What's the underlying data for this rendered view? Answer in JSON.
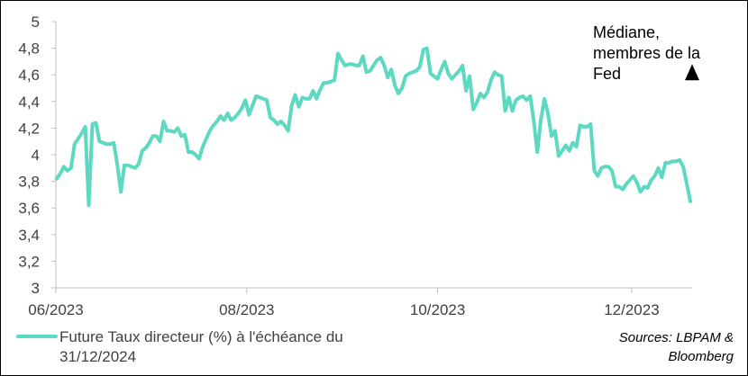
{
  "chart_data": {
    "type": "line",
    "title": "",
    "xlabel": "",
    "ylabel": "",
    "ylim": [
      3,
      5
    ],
    "y_ticks": [
      "5",
      "4,8",
      "4,6",
      "4,4",
      "4,2",
      "4",
      "3,8",
      "3,6",
      "3,4",
      "3,2",
      "3"
    ],
    "x_ticks": [
      "06/2023",
      "08/2023",
      "10/2023",
      "12/2023"
    ],
    "grid": false,
    "legend_position": "bottom-left",
    "series": [
      {
        "name": "Future Taux directeur (%) à l'échéance du 31/12/2024",
        "color": "#5DD9C1",
        "values": [
          3.82,
          3.86,
          3.91,
          3.88,
          3.9,
          4.08,
          4.12,
          4.16,
          4.21,
          3.62,
          4.23,
          4.24,
          4.1,
          4.09,
          4.08,
          4.08,
          4.09,
          3.93,
          3.72,
          3.92,
          3.92,
          3.91,
          3.9,
          3.93,
          4.03,
          4.05,
          4.09,
          4.14,
          4.14,
          4.1,
          4.25,
          4.18,
          4.18,
          4.17,
          4.2,
          4.14,
          4.15,
          4.02,
          4.02,
          4.0,
          3.97,
          4.06,
          4.12,
          4.18,
          4.22,
          4.25,
          4.29,
          4.26,
          4.31,
          4.26,
          4.28,
          4.31,
          4.35,
          4.41,
          4.3,
          4.37,
          4.44,
          4.43,
          4.42,
          4.41,
          4.28,
          4.26,
          4.23,
          4.25,
          4.22,
          4.18,
          4.37,
          4.45,
          4.36,
          4.43,
          4.42,
          4.42,
          4.48,
          4.42,
          4.49,
          4.54,
          4.54,
          4.55,
          4.56,
          4.76,
          4.71,
          4.67,
          4.68,
          4.68,
          4.67,
          4.67,
          4.74,
          4.62,
          4.63,
          4.67,
          4.71,
          4.73,
          4.67,
          4.58,
          4.64,
          4.52,
          4.46,
          4.5,
          4.59,
          4.61,
          4.62,
          4.63,
          4.66,
          4.79,
          4.8,
          4.61,
          4.59,
          4.57,
          4.64,
          4.7,
          4.61,
          4.57,
          4.6,
          4.63,
          4.67,
          4.48,
          4.59,
          4.34,
          4.39,
          4.46,
          4.43,
          4.47,
          4.56,
          4.62,
          4.6,
          4.59,
          4.33,
          4.43,
          4.33,
          4.41,
          4.43,
          4.44,
          4.41,
          4.44,
          4.26,
          4.02,
          4.26,
          4.42,
          4.31,
          4.14,
          4.18,
          3.99,
          4.03,
          4.07,
          4.03,
          4.09,
          4.06,
          4.22,
          4.21,
          4.21,
          4.23,
          3.88,
          3.84,
          3.9,
          3.91,
          3.91,
          3.88,
          3.76,
          3.76,
          3.74,
          3.78,
          3.81,
          3.84,
          3.79,
          3.72,
          3.76,
          3.75,
          3.81,
          3.84,
          3.9,
          3.83,
          3.94,
          3.94,
          3.95,
          3.95,
          3.96,
          3.91,
          3.78,
          3.65
        ]
      }
    ],
    "annotation": {
      "text_lines": [
        "Médiane,",
        "membres de la",
        "Fed"
      ],
      "value": 4.6,
      "marker": "triangle-up"
    }
  },
  "legend": {
    "line1": "Future Taux directeur (%) à l'échéance du",
    "line2": "31/12/2024"
  },
  "source": {
    "line1": "Sources: LBPAM &",
    "line2": "Bloomberg"
  }
}
